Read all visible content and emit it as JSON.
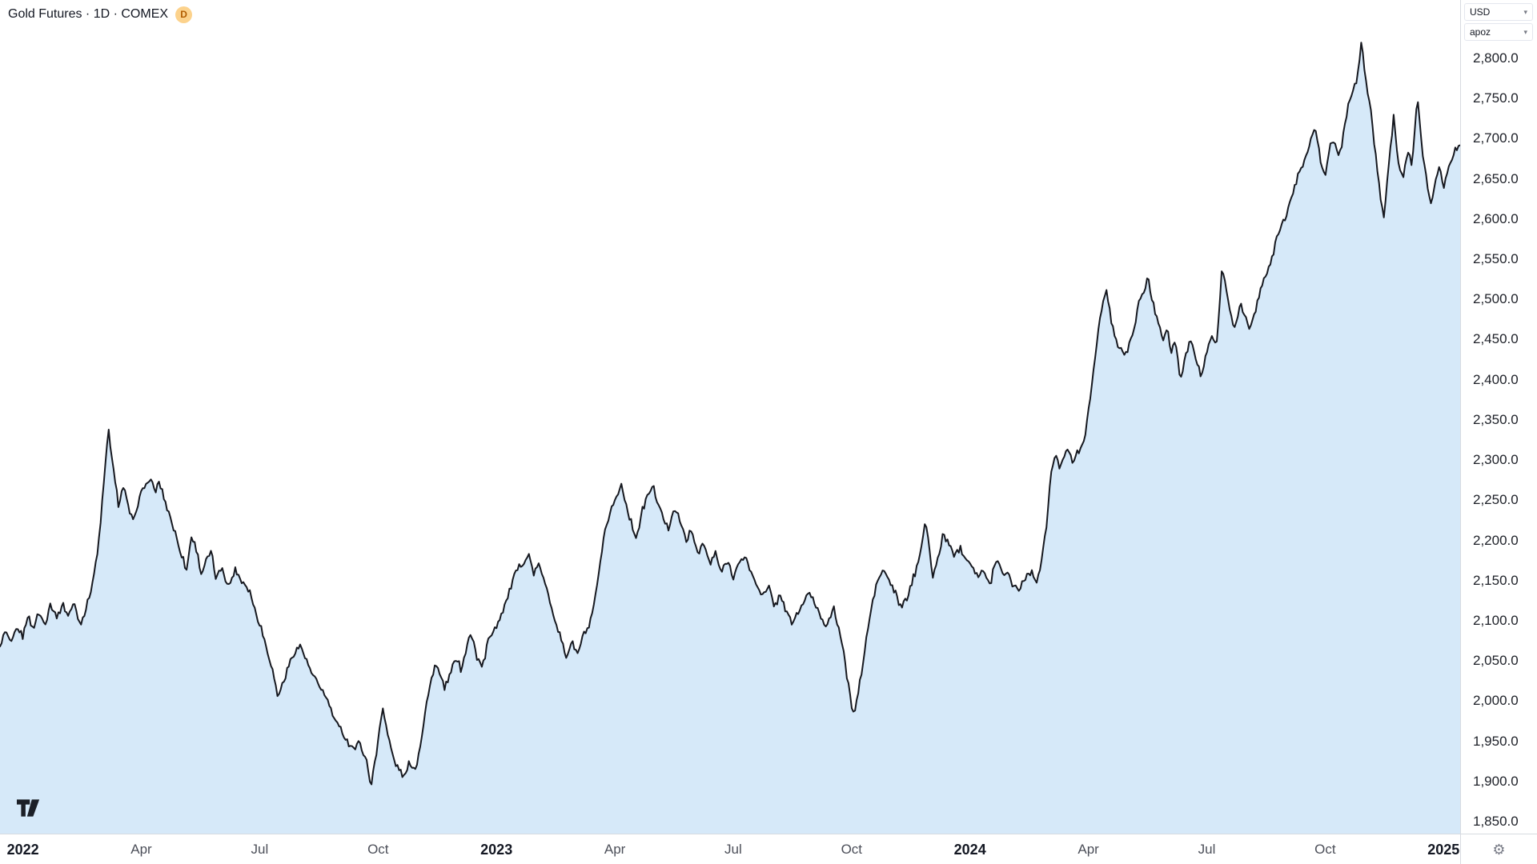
{
  "header": {
    "symbol_title": "Gold Futures · 1D · COMEX",
    "badge": "D"
  },
  "controls": {
    "currency": "USD",
    "unit": "apoz"
  },
  "icons": {
    "chevron_down": "▾",
    "gear": "⚙"
  },
  "colors": {
    "line": "#16181f",
    "fill": "#d6e9f9",
    "axis_border": "#d7dae0",
    "badge_bg": "#fcd28c",
    "badge_text": "#b15c00"
  },
  "chart_data": {
    "type": "area",
    "title": "Gold Futures · 1D · COMEX",
    "symbol": "Gold Futures",
    "interval": "1D",
    "exchange": "COMEX",
    "grid": false,
    "legend_position": "top-left",
    "x_axis": {
      "unit": "months_since_2022-01-01",
      "range": [
        -0.58,
        36.42
      ],
      "ticks": [
        {
          "label": "2022",
          "m": 0,
          "major": true
        },
        {
          "label": "Apr",
          "m": 3,
          "major": false
        },
        {
          "label": "Jul",
          "m": 6,
          "major": false
        },
        {
          "label": "Oct",
          "m": 9,
          "major": false
        },
        {
          "label": "2023",
          "m": 12,
          "major": true
        },
        {
          "label": "Apr",
          "m": 15,
          "major": false
        },
        {
          "label": "Jul",
          "m": 18,
          "major": false
        },
        {
          "label": "Oct",
          "m": 21,
          "major": false
        },
        {
          "label": "2024",
          "m": 24,
          "major": true
        },
        {
          "label": "Apr",
          "m": 27,
          "major": false
        },
        {
          "label": "Jul",
          "m": 30,
          "major": false
        },
        {
          "label": "Oct",
          "m": 33,
          "major": false
        },
        {
          "label": "2025",
          "m": 36,
          "major": true
        }
      ]
    },
    "y_axis": {
      "side": "right",
      "min": 1850,
      "max": 2800,
      "step": 50,
      "label_format": "#,##0.0",
      "ticks": [
        1850,
        1900,
        1950,
        2000,
        2050,
        2100,
        2150,
        2200,
        2250,
        2300,
        2350,
        2400,
        2450,
        2500,
        2550,
        2600,
        2650,
        2700,
        2750,
        2800
      ]
    },
    "series": [
      {
        "name": "Gold Futures",
        "style": "area",
        "points": [
          [
            -0.57,
            2068
          ],
          [
            -0.45,
            2082
          ],
          [
            -0.3,
            2072
          ],
          [
            -0.15,
            2092
          ],
          [
            0.0,
            2078
          ],
          [
            0.13,
            2108
          ],
          [
            0.25,
            2092
          ],
          [
            0.4,
            2112
          ],
          [
            0.55,
            2098
          ],
          [
            0.7,
            2118
          ],
          [
            0.85,
            2102
          ],
          [
            1.0,
            2125
          ],
          [
            1.15,
            2108
          ],
          [
            1.3,
            2122
          ],
          [
            1.45,
            2098
          ],
          [
            1.6,
            2118
          ],
          [
            1.75,
            2148
          ],
          [
            1.9,
            2188
          ],
          [
            2.05,
            2272
          ],
          [
            2.17,
            2342
          ],
          [
            2.3,
            2288
          ],
          [
            2.42,
            2245
          ],
          [
            2.55,
            2268
          ],
          [
            2.68,
            2242
          ],
          [
            2.8,
            2225
          ],
          [
            2.95,
            2248
          ],
          [
            3.1,
            2268
          ],
          [
            3.22,
            2278
          ],
          [
            3.35,
            2262
          ],
          [
            3.45,
            2275
          ],
          [
            3.6,
            2252
          ],
          [
            3.75,
            2232
          ],
          [
            3.88,
            2205
          ],
          [
            4.02,
            2182
          ],
          [
            4.15,
            2165
          ],
          [
            4.27,
            2208
          ],
          [
            4.4,
            2188
          ],
          [
            4.52,
            2158
          ],
          [
            4.65,
            2172
          ],
          [
            4.77,
            2182
          ],
          [
            4.9,
            2152
          ],
          [
            5.05,
            2168
          ],
          [
            5.2,
            2142
          ],
          [
            5.39,
            2165
          ],
          [
            5.55,
            2148
          ],
          [
            5.76,
            2132
          ],
          [
            5.9,
            2108
          ],
          [
            6.05,
            2088
          ],
          [
            6.2,
            2062
          ],
          [
            6.35,
            2035
          ],
          [
            6.45,
            2008
          ],
          [
            6.6,
            2022
          ],
          [
            6.75,
            2045
          ],
          [
            6.9,
            2062
          ],
          [
            7.05,
            2068
          ],
          [
            7.2,
            2048
          ],
          [
            7.35,
            2032
          ],
          [
            7.5,
            2022
          ],
          [
            7.65,
            2005
          ],
          [
            7.8,
            1992
          ],
          [
            7.95,
            1975
          ],
          [
            8.1,
            1962
          ],
          [
            8.25,
            1948
          ],
          [
            8.4,
            1938
          ],
          [
            8.55,
            1948
          ],
          [
            8.7,
            1928
          ],
          [
            8.82,
            1896
          ],
          [
            8.95,
            1932
          ],
          [
            9.11,
            1996
          ],
          [
            9.25,
            1958
          ],
          [
            9.4,
            1928
          ],
          [
            9.55,
            1912
          ],
          [
            9.67,
            1902
          ],
          [
            9.8,
            1922
          ],
          [
            9.95,
            1912
          ],
          [
            10.1,
            1952
          ],
          [
            10.2,
            1988
          ],
          [
            10.35,
            2028
          ],
          [
            10.45,
            2048
          ],
          [
            10.6,
            2022
          ],
          [
            10.7,
            2012
          ],
          [
            10.85,
            2038
          ],
          [
            11.0,
            2058
          ],
          [
            11.1,
            2042
          ],
          [
            11.25,
            2068
          ],
          [
            11.35,
            2078
          ],
          [
            11.5,
            2058
          ],
          [
            11.65,
            2048
          ],
          [
            11.8,
            2072
          ],
          [
            11.95,
            2088
          ],
          [
            12.03,
            2098
          ],
          [
            12.15,
            2112
          ],
          [
            12.3,
            2135
          ],
          [
            12.45,
            2158
          ],
          [
            12.6,
            2172
          ],
          [
            12.82,
            2185
          ],
          [
            12.95,
            2162
          ],
          [
            13.1,
            2172
          ],
          [
            13.25,
            2142
          ],
          [
            13.4,
            2118
          ],
          [
            13.55,
            2092
          ],
          [
            13.77,
            2055
          ],
          [
            13.9,
            2075
          ],
          [
            14.06,
            2058
          ],
          [
            14.2,
            2082
          ],
          [
            14.35,
            2092
          ],
          [
            14.45,
            2112
          ],
          [
            14.6,
            2162
          ],
          [
            14.75,
            2208
          ],
          [
            14.9,
            2238
          ],
          [
            15.05,
            2252
          ],
          [
            15.18,
            2270
          ],
          [
            15.3,
            2242
          ],
          [
            15.42,
            2222
          ],
          [
            15.55,
            2208
          ],
          [
            15.7,
            2238
          ],
          [
            15.85,
            2258
          ],
          [
            15.97,
            2270
          ],
          [
            16.1,
            2248
          ],
          [
            16.2,
            2232
          ],
          [
            16.35,
            2215
          ],
          [
            16.5,
            2238
          ],
          [
            16.65,
            2222
          ],
          [
            16.8,
            2198
          ],
          [
            16.95,
            2212
          ],
          [
            17.1,
            2188
          ],
          [
            17.25,
            2195
          ],
          [
            17.4,
            2172
          ],
          [
            17.55,
            2188
          ],
          [
            17.7,
            2162
          ],
          [
            17.85,
            2178
          ],
          [
            18.0,
            2155
          ],
          [
            18.15,
            2172
          ],
          [
            18.3,
            2185
          ],
          [
            18.45,
            2162
          ],
          [
            18.6,
            2148
          ],
          [
            18.75,
            2132
          ],
          [
            18.9,
            2142
          ],
          [
            19.05,
            2118
          ],
          [
            19.2,
            2132
          ],
          [
            19.35,
            2108
          ],
          [
            19.5,
            2095
          ],
          [
            19.65,
            2112
          ],
          [
            19.8,
            2128
          ],
          [
            19.95,
            2138
          ],
          [
            20.1,
            2122
          ],
          [
            20.25,
            2105
          ],
          [
            20.4,
            2095
          ],
          [
            20.55,
            2112
          ],
          [
            20.7,
            2085
          ],
          [
            20.85,
            2042
          ],
          [
            21.0,
            1998
          ],
          [
            21.07,
            1986
          ],
          [
            21.2,
            2022
          ],
          [
            21.35,
            2068
          ],
          [
            21.5,
            2112
          ],
          [
            21.65,
            2148
          ],
          [
            21.8,
            2162
          ],
          [
            21.95,
            2148
          ],
          [
            22.1,
            2132
          ],
          [
            22.25,
            2112
          ],
          [
            22.4,
            2125
          ],
          [
            22.55,
            2148
          ],
          [
            22.7,
            2182
          ],
          [
            22.87,
            2222
          ],
          [
            23.05,
            2152
          ],
          [
            23.2,
            2178
          ],
          [
            23.32,
            2208
          ],
          [
            23.45,
            2192
          ],
          [
            23.6,
            2182
          ],
          [
            23.75,
            2190
          ],
          [
            23.9,
            2178
          ],
          [
            24.05,
            2168
          ],
          [
            24.2,
            2152
          ],
          [
            24.35,
            2162
          ],
          [
            24.5,
            2145
          ],
          [
            24.65,
            2172
          ],
          [
            24.8,
            2162
          ],
          [
            24.95,
            2158
          ],
          [
            25.1,
            2148
          ],
          [
            25.25,
            2142
          ],
          [
            25.4,
            2155
          ],
          [
            25.55,
            2162
          ],
          [
            25.7,
            2152
          ],
          [
            25.8,
            2172
          ],
          [
            25.93,
            2215
          ],
          [
            26.05,
            2285
          ],
          [
            26.15,
            2308
          ],
          [
            26.3,
            2292
          ],
          [
            26.45,
            2315
          ],
          [
            26.6,
            2298
          ],
          [
            26.75,
            2312
          ],
          [
            26.9,
            2328
          ],
          [
            27.05,
            2375
          ],
          [
            27.2,
            2445
          ],
          [
            27.35,
            2492
          ],
          [
            27.47,
            2508
          ],
          [
            27.6,
            2468
          ],
          [
            27.75,
            2442
          ],
          [
            27.97,
            2432
          ],
          [
            28.1,
            2458
          ],
          [
            28.25,
            2488
          ],
          [
            28.4,
            2505
          ],
          [
            28.51,
            2528
          ],
          [
            28.65,
            2495
          ],
          [
            28.8,
            2465
          ],
          [
            28.9,
            2448
          ],
          [
            29.0,
            2462
          ],
          [
            29.1,
            2432
          ],
          [
            29.2,
            2448
          ],
          [
            29.33,
            2392
          ],
          [
            29.45,
            2425
          ],
          [
            29.58,
            2452
          ],
          [
            29.7,
            2432
          ],
          [
            29.85,
            2408
          ],
          [
            30.0,
            2435
          ],
          [
            30.1,
            2458
          ],
          [
            30.25,
            2442
          ],
          [
            30.39,
            2542
          ],
          [
            30.5,
            2512
          ],
          [
            30.6,
            2478
          ],
          [
            30.72,
            2462
          ],
          [
            30.85,
            2495
          ],
          [
            31.0,
            2478
          ],
          [
            31.1,
            2462
          ],
          [
            31.2,
            2478
          ],
          [
            31.35,
            2508
          ],
          [
            31.5,
            2528
          ],
          [
            31.65,
            2552
          ],
          [
            31.8,
            2578
          ],
          [
            31.9,
            2592
          ],
          [
            32.0,
            2602
          ],
          [
            32.15,
            2628
          ],
          [
            32.3,
            2655
          ],
          [
            32.45,
            2672
          ],
          [
            32.6,
            2695
          ],
          [
            32.75,
            2715
          ],
          [
            32.9,
            2668
          ],
          [
            33.0,
            2655
          ],
          [
            33.1,
            2682
          ],
          [
            33.2,
            2702
          ],
          [
            33.35,
            2682
          ],
          [
            33.5,
            2712
          ],
          [
            33.6,
            2742
          ],
          [
            33.7,
            2758
          ],
          [
            33.8,
            2772
          ],
          [
            33.93,
            2822
          ],
          [
            34.05,
            2762
          ],
          [
            34.15,
            2742
          ],
          [
            34.3,
            2672
          ],
          [
            34.48,
            2602
          ],
          [
            34.6,
            2662
          ],
          [
            34.74,
            2732
          ],
          [
            34.85,
            2672
          ],
          [
            34.97,
            2648
          ],
          [
            35.1,
            2682
          ],
          [
            35.2,
            2662
          ],
          [
            35.33,
            2752
          ],
          [
            35.45,
            2692
          ],
          [
            35.55,
            2662
          ],
          [
            35.69,
            2612
          ],
          [
            35.8,
            2648
          ],
          [
            35.9,
            2668
          ],
          [
            36.0,
            2632
          ],
          [
            36.1,
            2658
          ],
          [
            36.25,
            2678
          ],
          [
            36.42,
            2692
          ]
        ]
      }
    ]
  }
}
